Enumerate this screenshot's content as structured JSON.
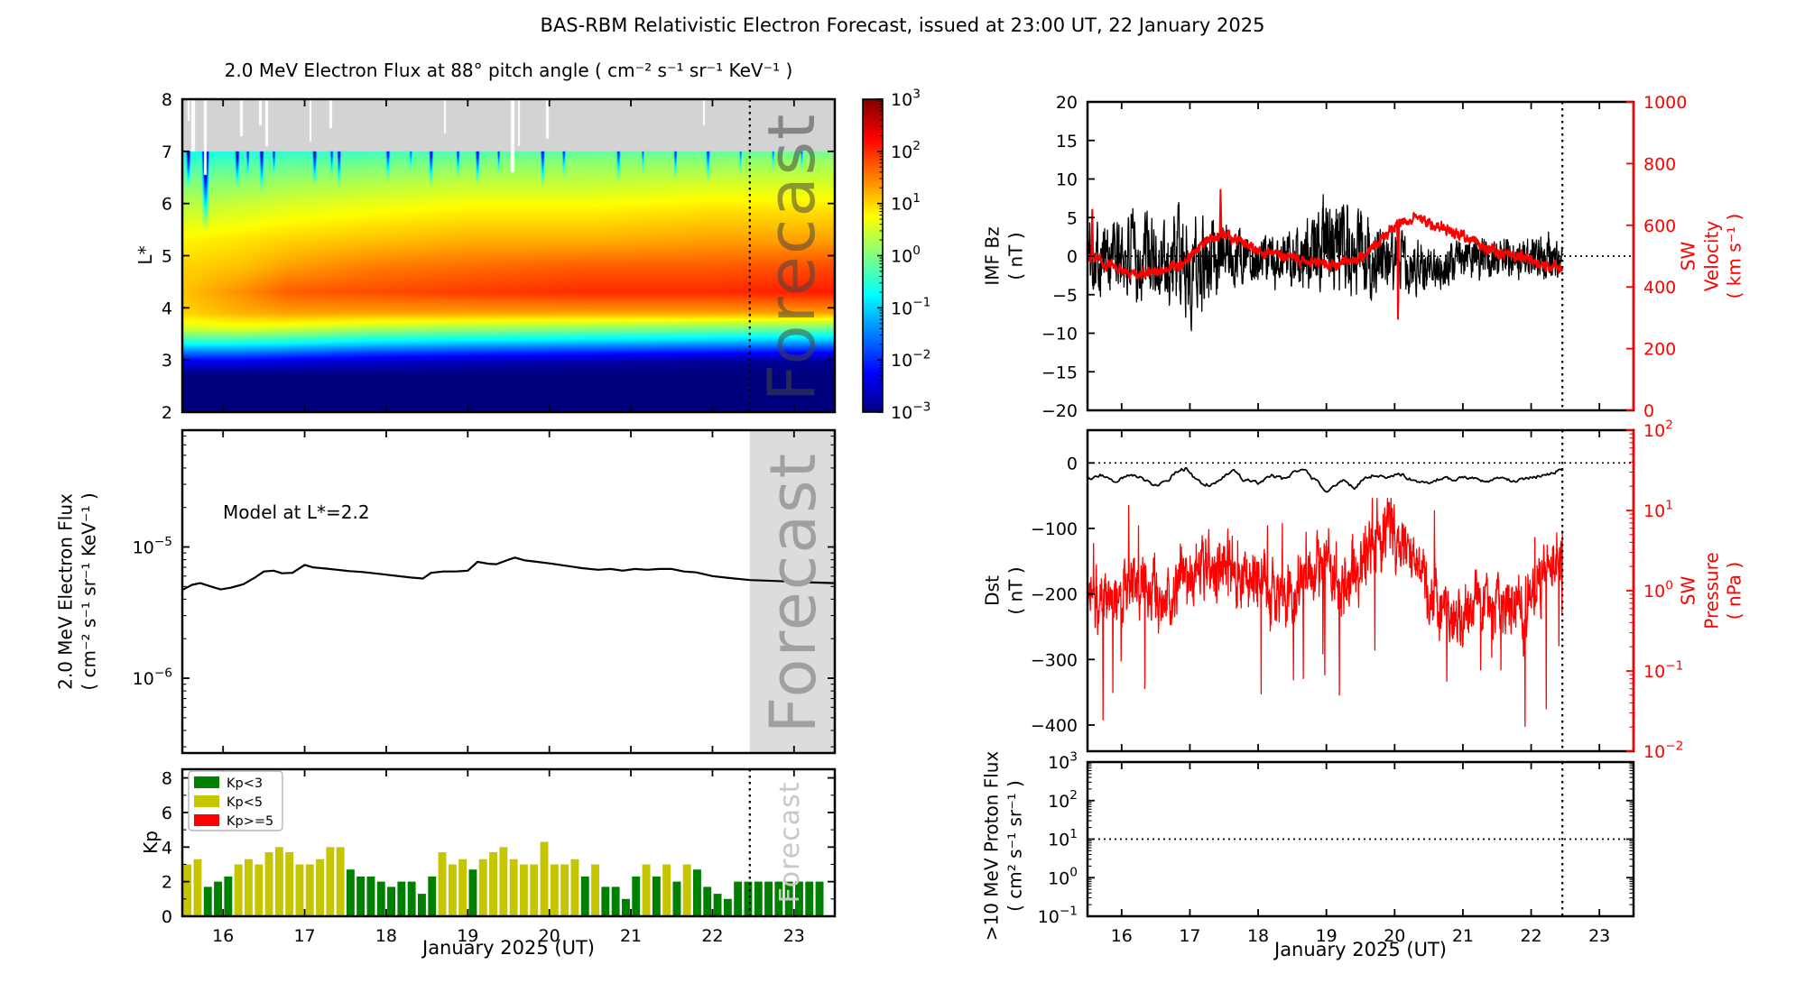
{
  "header": {
    "title": "BAS-RBM Relativistic Electron Forecast, issued at 23:00 UT, 22 January 2025"
  },
  "chart_data": {
    "x_axis": {
      "label": "January 2025 (UT)",
      "xlim": [
        15.5,
        23.5
      ],
      "ticks": [
        16,
        17,
        18,
        19,
        20,
        21,
        22,
        23
      ]
    },
    "forecast_start": 22.458,
    "watermark_text": "Forecast",
    "spectrogram": {
      "type": "heatmap",
      "title": "2.0 MeV Electron Flux at 88° pitch angle ( cm⁻² s⁻¹ sr⁻¹ KeV⁻¹ )",
      "ylabel": "L*",
      "ylim": [
        2,
        8
      ],
      "yticks": [
        2,
        3,
        4,
        5,
        6,
        7,
        8
      ],
      "colormap": "jet",
      "data_gap_band_L": [
        7,
        8
      ],
      "colorbar": {
        "scale": "log",
        "tick_exponents": [
          3,
          2,
          1,
          0,
          -1,
          -2,
          -3
        ]
      },
      "L_anchors": [
        2.0,
        2.7,
        2.95,
        3.15,
        3.35,
        3.6,
        3.9,
        4.3,
        4.8,
        5.3,
        5.9,
        6.4,
        6.8,
        7.0
      ],
      "time_anchors": [
        15.5,
        16.2,
        16.8,
        17.8,
        19.0,
        20.5,
        22.0,
        23.5
      ],
      "logflux_profiles": [
        [
          -3,
          -3,
          -2.4,
          -1.5,
          -0.5,
          0.5,
          1.0,
          1.1,
          1.0,
          0.8,
          0.4,
          0.0,
          -0.4,
          -0.7
        ],
        [
          -3,
          -3,
          -2.4,
          -1.5,
          -0.5,
          0.6,
          1.2,
          1.4,
          1.1,
          0.9,
          0.5,
          0.1,
          -0.3,
          -0.6
        ],
        [
          -3,
          -3,
          -2.5,
          -1.6,
          -0.6,
          0.5,
          1.3,
          1.7,
          1.3,
          1.0,
          0.6,
          0.2,
          -0.2,
          -0.5
        ],
        [
          -3,
          -3,
          -2.6,
          -1.8,
          -0.8,
          0.3,
          1.3,
          1.8,
          1.5,
          1.1,
          0.7,
          0.3,
          -0.1,
          -0.4
        ],
        [
          -3,
          -3,
          -2.7,
          -1.9,
          -0.9,
          0.2,
          1.3,
          1.9,
          1.6,
          1.2,
          0.8,
          0.4,
          0.0,
          -0.3
        ],
        [
          -3,
          -3,
          -2.8,
          -2.0,
          -1.0,
          0.1,
          1.3,
          2.0,
          1.7,
          1.2,
          0.8,
          0.4,
          0.1,
          -0.2
        ],
        [
          -3,
          -3,
          -2.9,
          -2.1,
          -1.1,
          0.0,
          1.3,
          2.0,
          1.7,
          1.3,
          0.9,
          0.5,
          0.1,
          -0.2
        ],
        [
          -3,
          -3,
          -2.9,
          -2.2,
          -1.2,
          -0.1,
          1.3,
          2.1,
          1.8,
          1.3,
          0.9,
          0.5,
          0.2,
          -0.1
        ]
      ],
      "blue_streaks": [
        [
          15.57,
          0.03,
          6.3,
          3
        ],
        [
          15.78,
          0.05,
          5.45,
          4
        ],
        [
          16.17,
          0.03,
          6.3,
          3
        ],
        [
          16.3,
          0.02,
          6.5,
          2.5
        ],
        [
          16.47,
          0.03,
          6.2,
          3
        ],
        [
          16.62,
          0.02,
          6.55,
          2.5
        ],
        [
          17.12,
          0.03,
          6.35,
          3
        ],
        [
          17.33,
          0.02,
          6.5,
          2.5
        ],
        [
          17.42,
          0.025,
          6.3,
          3
        ],
        [
          18.02,
          0.03,
          6.45,
          2.5
        ],
        [
          18.3,
          0.02,
          6.6,
          2
        ],
        [
          18.55,
          0.03,
          6.3,
          3
        ],
        [
          18.88,
          0.025,
          6.5,
          2.5
        ],
        [
          19.12,
          0.03,
          6.35,
          3
        ],
        [
          19.38,
          0.02,
          6.55,
          2.5
        ],
        [
          19.92,
          0.03,
          6.3,
          3
        ],
        [
          20.18,
          0.025,
          6.5,
          2.5
        ],
        [
          20.85,
          0.03,
          6.4,
          2.5
        ],
        [
          21.15,
          0.02,
          6.55,
          2
        ],
        [
          21.55,
          0.025,
          6.45,
          2.5
        ],
        [
          21.95,
          0.03,
          6.4,
          2.5
        ],
        [
          22.35,
          0.02,
          6.55,
          2
        ],
        [
          22.75,
          0.02,
          6.6,
          2
        ],
        [
          23.1,
          0.02,
          6.6,
          2
        ]
      ],
      "white_gaps": [
        [
          15.57,
          0.012,
          7.6
        ],
        [
          15.63,
          0.02,
          7.0
        ],
        [
          15.78,
          0.015,
          6.55
        ],
        [
          16.22,
          0.012,
          7.3
        ],
        [
          16.45,
          0.015,
          7.5
        ],
        [
          16.53,
          0.02,
          7.1
        ],
        [
          17.07,
          0.012,
          7.2
        ],
        [
          17.32,
          0.015,
          7.45
        ],
        [
          18.72,
          0.012,
          7.35
        ],
        [
          19.55,
          0.02,
          6.6
        ],
        [
          19.63,
          0.012,
          7.1
        ],
        [
          19.98,
          0.015,
          7.25
        ],
        [
          21.9,
          0.012,
          7.5
        ]
      ]
    },
    "model_flux": {
      "type": "line",
      "ylabel": "2.0 MeV Electron Flux\n( cm⁻² s⁻¹ sr⁻¹ KeV⁻¹ )",
      "annotation": "Model at L*=2.2",
      "yscale": "log",
      "ylim_exp": [
        -6.57,
        -4.11
      ],
      "ytick_exponents": [
        -5,
        -6
      ],
      "line_color": "#000000",
      "forecast_band_color": "#dcdcdc",
      "series_t": [
        15.5,
        15.62,
        15.72,
        15.85,
        15.97,
        16.1,
        16.25,
        16.4,
        16.5,
        16.62,
        16.72,
        16.85,
        17.0,
        17.1,
        17.25,
        17.4,
        17.55,
        17.7,
        17.9,
        18.1,
        18.3,
        18.45,
        18.55,
        18.7,
        18.85,
        19.0,
        19.12,
        19.25,
        19.35,
        19.5,
        19.58,
        19.7,
        19.85,
        20.0,
        20.2,
        20.4,
        20.6,
        20.75,
        20.9,
        21.05,
        21.2,
        21.35,
        21.5,
        21.65,
        21.8,
        22.0,
        22.2,
        22.46,
        22.8,
        23.1,
        23.5
      ],
      "series_flux_1e6": [
        4.7,
        5.15,
        5.3,
        5.0,
        4.75,
        4.9,
        5.2,
        5.9,
        6.5,
        6.6,
        6.3,
        6.35,
        7.3,
        7.0,
        6.85,
        6.7,
        6.55,
        6.45,
        6.25,
        6.05,
        5.85,
        5.75,
        6.35,
        6.5,
        6.5,
        6.6,
        7.7,
        7.45,
        7.4,
        8.0,
        8.3,
        7.9,
        7.7,
        7.5,
        7.2,
        6.9,
        6.7,
        6.8,
        6.6,
        6.8,
        6.7,
        6.8,
        6.8,
        6.5,
        6.4,
        6.0,
        5.8,
        5.6,
        5.5,
        5.4,
        5.3
      ]
    },
    "kp": {
      "type": "bar",
      "ylabel": "Kp",
      "ylim": [
        0,
        8.5
      ],
      "yticks": [
        0,
        2,
        4,
        6,
        8
      ],
      "yticks_minor": [
        1,
        3,
        5,
        7
      ],
      "bar_hours": 3,
      "t_start": 15.5,
      "values": [
        3.0,
        3.3,
        1.7,
        2.0,
        2.3,
        3.0,
        3.3,
        3.0,
        3.7,
        4.0,
        3.7,
        3.0,
        3.0,
        3.3,
        4.0,
        4.0,
        2.7,
        2.3,
        2.3,
        2.0,
        1.7,
        2.0,
        2.0,
        1.3,
        2.3,
        3.7,
        3.0,
        3.3,
        2.7,
        3.3,
        3.7,
        4.0,
        3.3,
        3.0,
        3.0,
        4.3,
        3.0,
        3.0,
        3.3,
        2.3,
        3.0,
        1.7,
        1.7,
        1.0,
        2.3,
        3.0,
        2.3,
        3.0,
        2.0,
        3.0,
        2.7,
        1.7,
        1.3,
        1.0,
        2.0,
        2.0,
        2.0,
        2.0,
        2.0,
        2.0,
        2.0,
        2.0,
        2.0
      ],
      "thresholds": {
        "low_max": 3,
        "mid_max": 5
      },
      "colors": {
        "low": "#008000",
        "mid": "#c6c600",
        "high": "#ff0000"
      },
      "legend": [
        {
          "label": "Kp<3",
          "color": "#008000"
        },
        {
          "label": "Kp<5",
          "color": "#c6c600"
        },
        {
          "label": "Kp>=5",
          "color": "#ff0000"
        }
      ]
    },
    "imf_sw": {
      "type": "line",
      "left": {
        "label": "IMF Bz\n( nT )",
        "ylim": [
          -20,
          20
        ],
        "ticks": [
          -20,
          -15,
          -10,
          -5,
          0,
          5,
          10,
          15,
          20
        ],
        "color": "#000000",
        "hline": 0
      },
      "right": {
        "label": "SW Velocity\n( km s⁻¹ )",
        "ylim": [
          0,
          1000
        ],
        "ticks": [
          0,
          200,
          400,
          600,
          800,
          1000
        ],
        "color": "#ff0000"
      },
      "bz_anchor_t": [
        15.5,
        16.0,
        16.5,
        17.0,
        17.3,
        17.6,
        18.0,
        18.4,
        18.7,
        19.0,
        19.3,
        19.6,
        20.0,
        20.4,
        20.8,
        21.2,
        21.6,
        22.0,
        22.3,
        22.46
      ],
      "bz_anchor_mean": [
        0.5,
        0.0,
        -0.5,
        -1.0,
        0.5,
        0.5,
        0.0,
        -1.0,
        0.0,
        1.0,
        1.0,
        0.0,
        -1.0,
        -1.5,
        -1.0,
        -0.5,
        0.0,
        0.0,
        0.0,
        -1.0
      ],
      "bz_anchor_amp": [
        5.5,
        7.0,
        8.0,
        9.0,
        7.0,
        5.0,
        4.0,
        4.5,
        6.5,
        8.0,
        8.5,
        7.0,
        5.0,
        4.0,
        3.5,
        3.5,
        3.5,
        4.0,
        4.0,
        3.0
      ],
      "speed_anchor_t": [
        15.5,
        15.7,
        16.0,
        16.3,
        16.6,
        16.9,
        17.1,
        17.3,
        17.5,
        17.7,
        18.0,
        18.3,
        18.6,
        18.9,
        19.1,
        19.4,
        19.6,
        19.8,
        20.0,
        20.2,
        20.35,
        20.5,
        20.8,
        21.1,
        21.4,
        21.7,
        22.0,
        22.2,
        22.46
      ],
      "speed_anchor_v": [
        505,
        480,
        452,
        442,
        450,
        478,
        525,
        555,
        570,
        548,
        522,
        505,
        492,
        478,
        474,
        490,
        510,
        560,
        600,
        618,
        632,
        612,
        582,
        552,
        523,
        505,
        487,
        472,
        458
      ],
      "speed_spikes": [
        [
          15.57,
          655
        ],
        [
          17.45,
          720
        ],
        [
          20.05,
          268
        ]
      ]
    },
    "dst_pressure": {
      "type": "line",
      "left": {
        "label": "Dst\n( nT )",
        "ylim": [
          -440,
          50
        ],
        "ticks": [
          0,
          -100,
          -200,
          -300,
          -400
        ],
        "color": "#000000",
        "hline": 0
      },
      "right": {
        "label": "SW Pressure\n( nPa )",
        "scale": "log",
        "ylim_exp": [
          -2,
          2
        ],
        "tick_exponents": [
          2,
          1,
          0,
          -1,
          -2
        ],
        "color": "#ff0000"
      },
      "dst_anchor_t": [
        15.5,
        15.7,
        15.9,
        16.1,
        16.3,
        16.5,
        16.65,
        16.8,
        16.95,
        17.1,
        17.3,
        17.5,
        17.65,
        17.8,
        18.0,
        18.2,
        18.4,
        18.55,
        18.7,
        18.9,
        19.0,
        19.1,
        19.25,
        19.4,
        19.55,
        19.7,
        19.9,
        20.1,
        20.3,
        20.5,
        20.7,
        20.9,
        21.1,
        21.3,
        21.5,
        21.7,
        21.9,
        22.1,
        22.3,
        22.46
      ],
      "dst_anchor_v": [
        -25,
        -18,
        -30,
        -18,
        -25,
        -35,
        -30,
        -12,
        -8,
        -28,
        -33,
        -20,
        -14,
        -26,
        -30,
        -20,
        -26,
        -10,
        -15,
        -33,
        -48,
        -35,
        -28,
        -38,
        -25,
        -18,
        -22,
        -18,
        -28,
        -30,
        -22,
        -26,
        -22,
        -30,
        -24,
        -28,
        -24,
        -20,
        -15,
        -10
      ],
      "pressure_anchor_t": [
        15.5,
        15.7,
        16.0,
        16.3,
        16.6,
        16.9,
        17.2,
        17.5,
        17.8,
        18.1,
        18.4,
        18.7,
        19.0,
        19.3,
        19.6,
        19.9,
        20.1,
        20.3,
        20.6,
        20.9,
        21.2,
        21.5,
        21.8,
        22.1,
        22.3,
        22.46
      ],
      "pressure_anchor_logp": [
        -0.12,
        -0.15,
        -0.08,
        0.1,
        -0.1,
        0.15,
        0.4,
        0.3,
        0.25,
        0.05,
        -0.1,
        0.15,
        0.35,
        0.1,
        0.45,
        0.75,
        0.5,
        0.45,
        -0.1,
        -0.35,
        -0.15,
        -0.2,
        -0.25,
        0.0,
        0.35,
        0.5
      ]
    },
    "proton": {
      "type": "line",
      "ylabel": ">10 MeV Proton Flux\n( cm² s⁻¹ sr⁻¹ )",
      "yscale": "log",
      "ylim_exp": [
        -1,
        3
      ],
      "ytick_exponents": [
        3,
        2,
        1,
        0,
        -1
      ],
      "hline_exp": 1,
      "series": "no data visible"
    }
  }
}
